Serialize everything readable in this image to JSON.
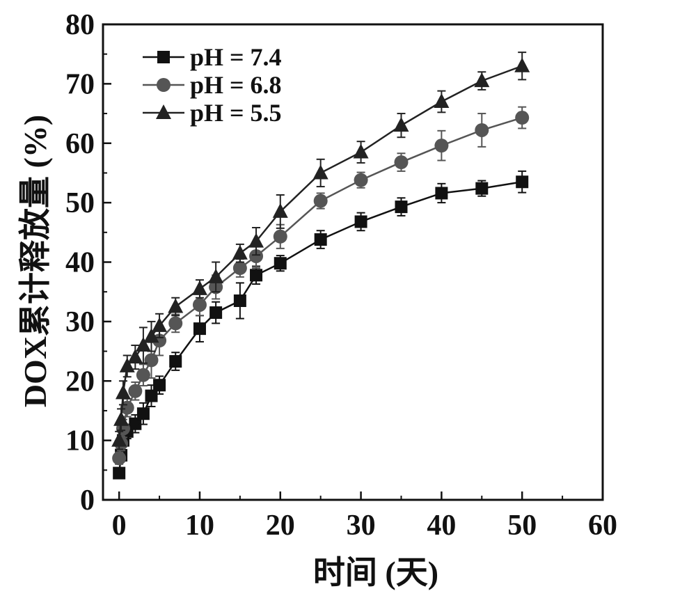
{
  "chart_data": {
    "type": "line",
    "xlabel": "时间 (天)",
    "ylabel": "DOX累计释放量 (%)",
    "xlim": [
      -2,
      60
    ],
    "ylim": [
      0,
      80
    ],
    "x_ticks": [
      0,
      10,
      20,
      30,
      40,
      50,
      60
    ],
    "y_ticks": [
      0,
      10,
      20,
      30,
      40,
      50,
      60,
      70,
      80
    ],
    "grid": false,
    "legend_position": "top-left",
    "series": [
      {
        "name": "pH = 7.4",
        "marker": "square",
        "color": "#111111",
        "x": [
          0,
          0.25,
          0.5,
          1,
          2,
          3,
          4,
          5,
          7,
          10,
          12,
          15,
          17,
          20,
          25,
          30,
          35,
          40,
          45,
          50
        ],
        "y": [
          4.5,
          7.5,
          10.0,
          11.5,
          12.8,
          14.5,
          17.5,
          19.3,
          23.3,
          28.8,
          31.5,
          33.5,
          37.8,
          39.8,
          43.8,
          46.8,
          49.3,
          51.6,
          52.4,
          53.5
        ],
        "err": [
          0.8,
          1.0,
          1.0,
          1.2,
          1.5,
          1.8,
          1.8,
          1.5,
          1.5,
          2.2,
          1.8,
          3.0,
          1.5,
          1.3,
          1.5,
          1.5,
          1.5,
          1.6,
          1.3,
          1.8
        ]
      },
      {
        "name": "pH = 6.8",
        "marker": "circle",
        "color": "#555555",
        "x": [
          0,
          0.25,
          0.5,
          1,
          2,
          3,
          4,
          5,
          7,
          10,
          12,
          15,
          17,
          20,
          25,
          30,
          35,
          40,
          45,
          50
        ],
        "y": [
          7.0,
          9.5,
          12.0,
          15.5,
          18.3,
          21.0,
          23.5,
          26.8,
          29.7,
          32.8,
          35.8,
          39.0,
          41.0,
          44.3,
          50.3,
          53.8,
          56.8,
          59.6,
          62.2,
          64.3
        ],
        "err": [
          1.0,
          1.2,
          1.5,
          1.5,
          1.5,
          1.8,
          3.0,
          2.5,
          1.5,
          1.8,
          2.0,
          1.5,
          2.0,
          2.0,
          1.3,
          1.3,
          1.5,
          2.5,
          2.8,
          1.8
        ]
      },
      {
        "name": "pH = 5.5",
        "marker": "triangle",
        "color": "#222222",
        "x": [
          0,
          0.25,
          0.5,
          1,
          2,
          3,
          4,
          5,
          7,
          10,
          12,
          15,
          17,
          20,
          25,
          30,
          35,
          40,
          45,
          50
        ],
        "y": [
          10.0,
          13.5,
          18.0,
          22.5,
          24.0,
          26.0,
          27.5,
          29.3,
          32.5,
          35.5,
          37.5,
          41.5,
          43.5,
          48.5,
          55.0,
          58.5,
          63.0,
          67.0,
          70.5,
          73.0
        ],
        "err": [
          1.5,
          1.8,
          2.0,
          1.8,
          2.0,
          3.0,
          2.5,
          2.0,
          1.5,
          1.5,
          2.5,
          1.5,
          2.3,
          2.8,
          2.3,
          1.8,
          2.0,
          1.8,
          1.5,
          2.3
        ]
      }
    ]
  }
}
